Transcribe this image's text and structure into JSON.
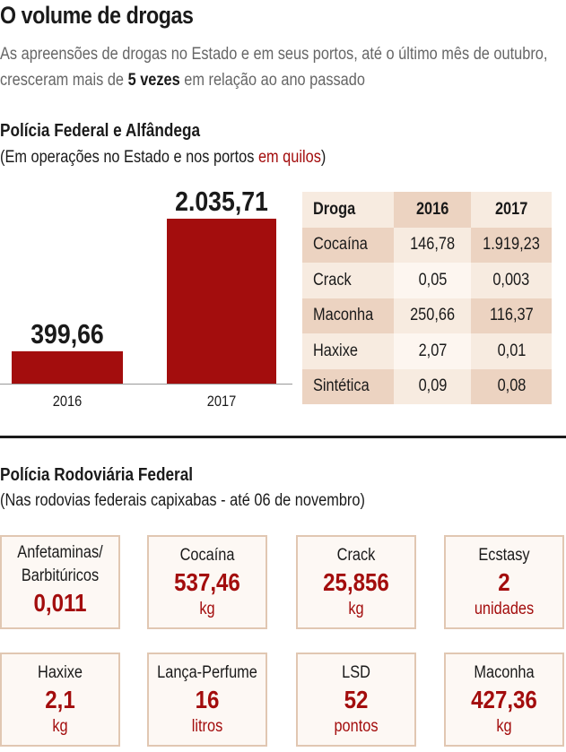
{
  "header": {
    "title": "O volume de drogas",
    "subtitle_pre": "As apreensões de drogas no Estado e em seus portos, até o último mês de outubro, cresceram mais de ",
    "subtitle_bold": "5 vezes",
    "subtitle_post": " em relação ao ano passado"
  },
  "section1": {
    "title": "Polícia Federal e Alfândega",
    "sub_pre": "(Em operações no Estado e nos portos ",
    "sub_red": "em quilos",
    "sub_post": ")"
  },
  "chart_data": {
    "type": "bar",
    "categories": [
      "2016",
      "2017"
    ],
    "values": [
      399.66,
      2035.71
    ],
    "value_labels": [
      "399,66",
      "2.035,71"
    ],
    "bar_color": "#a30d0d",
    "grid": false
  },
  "table": {
    "headers": [
      "Droga",
      "2016",
      "2017"
    ],
    "rows": [
      [
        "Cocaína",
        "146,78",
        "1.919,23"
      ],
      [
        "Crack",
        "0,05",
        "0,003"
      ],
      [
        "Maconha",
        "250,66",
        "116,37"
      ],
      [
        "Haxixe",
        "2,07",
        "0,01"
      ],
      [
        "Sintética",
        "0,09",
        "0,08"
      ]
    ]
  },
  "section2": {
    "title": "Polícia Rodoviária Federal",
    "sub": "(Nas rodovias federais capixabas - até 06 de novembro)"
  },
  "cards": [
    {
      "label": "Anfetaminas/",
      "label2": "Barbitúricos",
      "value": "0,011",
      "unit": ""
    },
    {
      "label": "Cocaína",
      "value": "537,46",
      "unit": "kg"
    },
    {
      "label": "Crack",
      "value": "25,856",
      "unit": "kg"
    },
    {
      "label": "Ecstasy",
      "value": "2",
      "unit": "unidades"
    },
    {
      "label": "Haxixe",
      "value": "2,1",
      "unit": "kg"
    },
    {
      "label": "Lança-Perfume",
      "value": "16",
      "unit": "litros"
    },
    {
      "label": "LSD",
      "value": "52",
      "unit": "pontos"
    },
    {
      "label": "Maconha",
      "value": "427,36",
      "unit": "kg"
    }
  ],
  "colors": {
    "accent_red": "#a30d0d",
    "table_light": "#f7ebe0",
    "table_dark": "#ecd3c1",
    "card_border": "#e1c7b2"
  }
}
